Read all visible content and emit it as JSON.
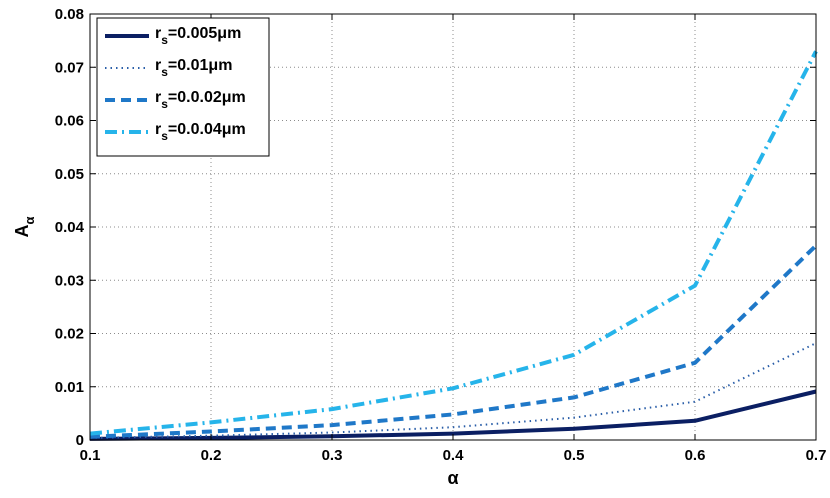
{
  "chart_data": {
    "type": "line",
    "x": [
      0.1,
      0.2,
      0.3,
      0.4,
      0.5,
      0.6,
      0.7
    ],
    "xlim": [
      0.1,
      0.7
    ],
    "ylim": [
      0,
      0.08
    ],
    "xticks": [
      "0.1",
      "0.2",
      "0.3",
      "0.4",
      "0.5",
      "0.6",
      "0.7"
    ],
    "yticks": [
      "0",
      "0.01",
      "0.02",
      "0.03",
      "0.04",
      "0.05",
      "0.06",
      "0.07",
      "0.08"
    ],
    "xlabel": "α",
    "ylabel": {
      "main": "A",
      "sub": "α"
    },
    "grid": true,
    "legend_position": "top-left",
    "series": [
      {
        "name": "r_s=0.005μm",
        "label_main": "r",
        "label_sub": "s",
        "label_rest": "=0.005μm",
        "color": "#0b1f63",
        "style": "solid",
        "values": [
          0.0002,
          0.0004,
          0.0007,
          0.0012,
          0.0021,
          0.0036,
          0.0091
        ]
      },
      {
        "name": "r_s=0.01μm",
        "label_main": "r",
        "label_sub": "s",
        "label_rest": "=0.01μm",
        "color": "#2a5ea8",
        "style": "dotted",
        "values": [
          0.0004,
          0.0008,
          0.0014,
          0.0024,
          0.0042,
          0.0072,
          0.0182
        ]
      },
      {
        "name": "r_s=0.0.02μm",
        "label_main": "r",
        "label_sub": "s",
        "label_rest": "=0.0.02μm",
        "color": "#1f78c8",
        "style": "dashed",
        "values": [
          0.0006,
          0.0016,
          0.0028,
          0.0048,
          0.008,
          0.0145,
          0.0365
        ]
      },
      {
        "name": "r_s=0.0.04μm",
        "label_main": "r",
        "label_sub": "s",
        "label_rest": "=0.0.04μm",
        "color": "#26b4ea",
        "style": "dashdot",
        "values": [
          0.0012,
          0.0033,
          0.0058,
          0.0097,
          0.016,
          0.029,
          0.073
        ]
      }
    ]
  }
}
